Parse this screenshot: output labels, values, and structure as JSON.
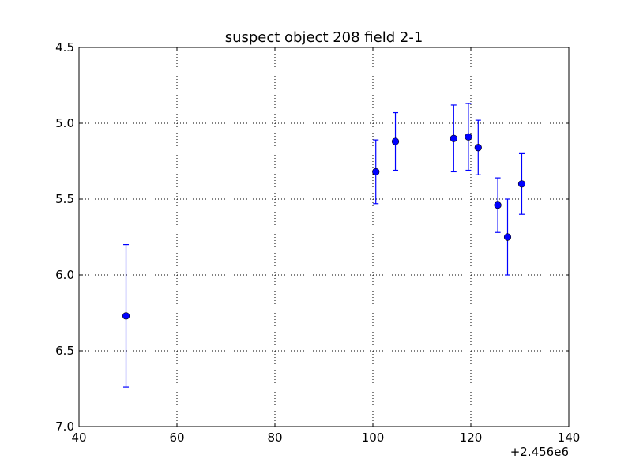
{
  "chart_data": {
    "type": "scatter",
    "title": "suspect object 208 field 2-1",
    "xlabel": "",
    "ylabel": "",
    "xlim": [
      40,
      140
    ],
    "ylim": [
      4.5,
      7.0
    ],
    "y_inverted": true,
    "x_ticks": [
      40,
      60,
      80,
      100,
      120,
      140
    ],
    "x_tick_labels": [
      "40",
      "60",
      "80",
      "100",
      "120",
      "140"
    ],
    "y_ticks": [
      4.5,
      5.0,
      5.5,
      6.0,
      6.5,
      7.0
    ],
    "y_tick_labels": [
      "4.5",
      "5.0",
      "5.5",
      "6.0",
      "6.5",
      "7.0"
    ],
    "x_offset_label": "+2.456e6",
    "grid": true,
    "series": [
      {
        "marker": "circle",
        "error_bars": "vertical",
        "points": [
          {
            "x": 49.6,
            "y": 6.27,
            "yerr": 0.47
          },
          {
            "x": 100.6,
            "y": 5.32,
            "yerr": 0.21
          },
          {
            "x": 104.6,
            "y": 5.12,
            "yerr": 0.19
          },
          {
            "x": 116.5,
            "y": 5.1,
            "yerr": 0.22
          },
          {
            "x": 119.5,
            "y": 5.09,
            "yerr": 0.22
          },
          {
            "x": 121.5,
            "y": 5.16,
            "yerr": 0.18
          },
          {
            "x": 125.5,
            "y": 5.54,
            "yerr": 0.18
          },
          {
            "x": 127.5,
            "y": 5.75,
            "yerr": 0.25
          },
          {
            "x": 130.4,
            "y": 5.4,
            "yerr": 0.2
          }
        ]
      }
    ],
    "colors": {
      "series": "#0000ff",
      "axes": "#000000",
      "grid": "#000000",
      "background": "#ffffff"
    }
  }
}
